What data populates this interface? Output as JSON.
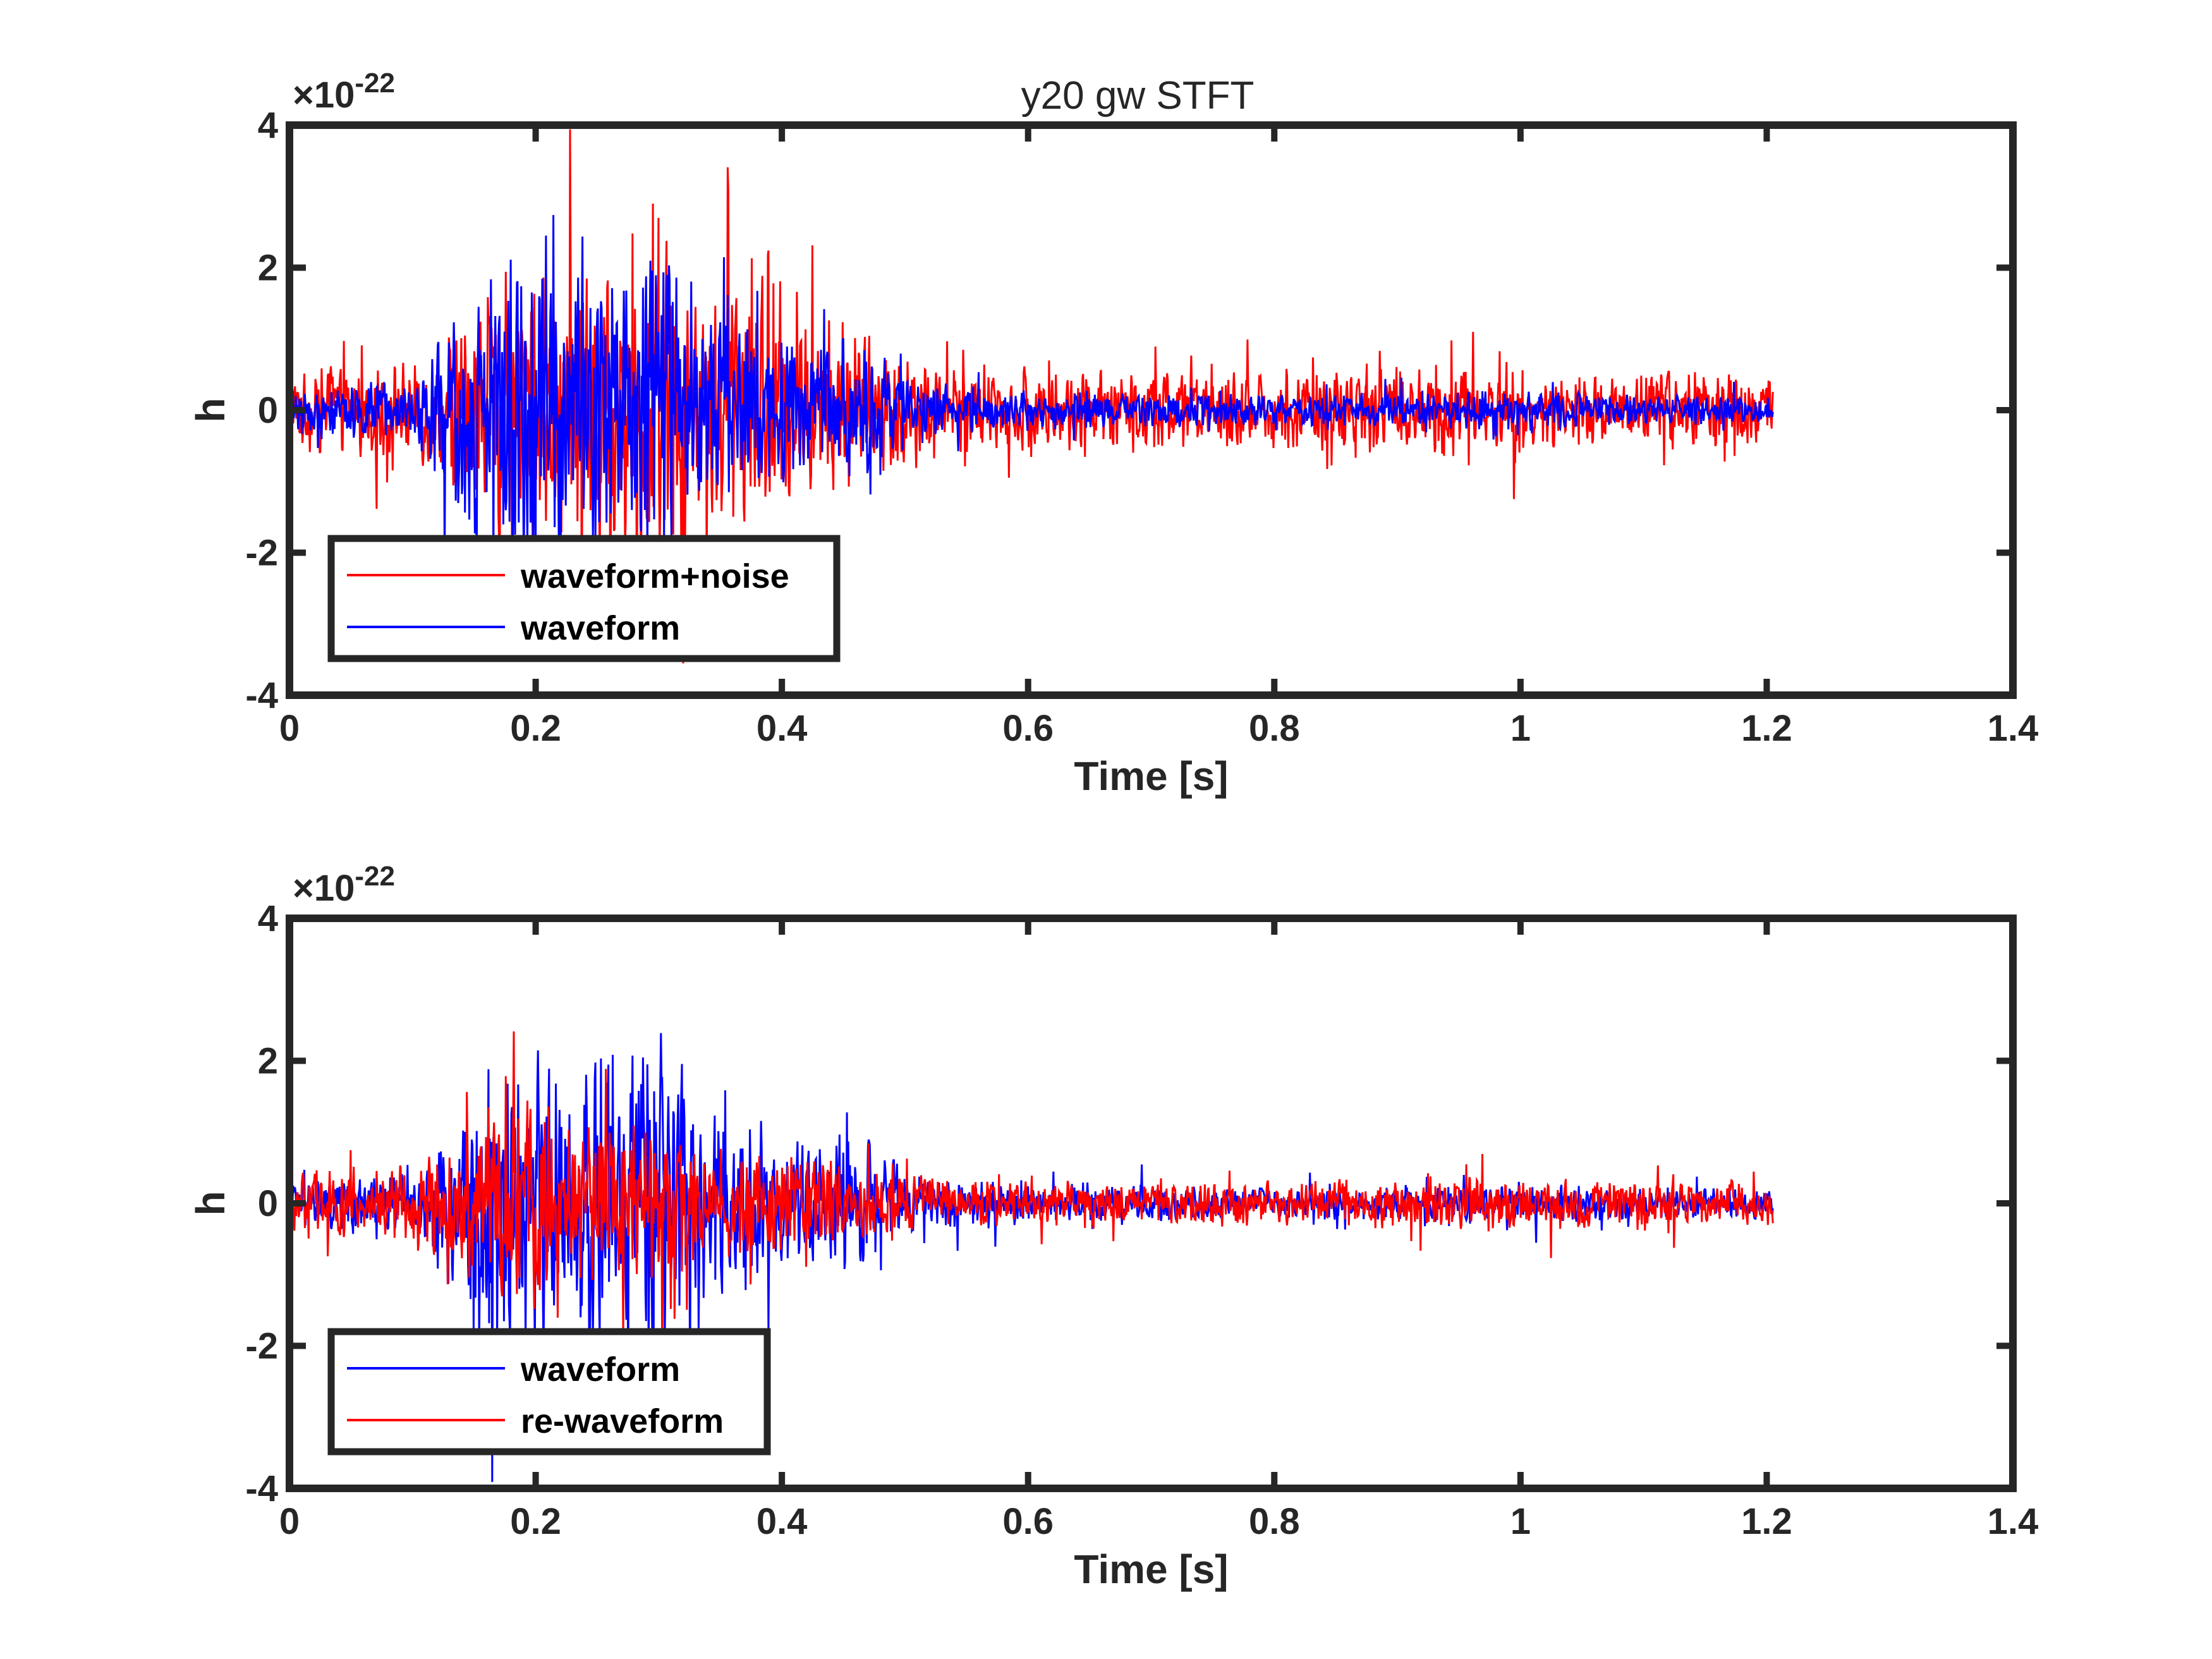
{
  "figure_title": "y20 gw STFT",
  "colors": {
    "noisy": "#ff0000",
    "waveform": "#0000ff",
    "axes": "#262626"
  },
  "chart_data": [
    {
      "type": "line",
      "title": "y20 gw STFT",
      "xlabel": "Time [s]",
      "ylabel": "h",
      "y_exponent_label": "×10",
      "y_exponent": "-22",
      "xlim": [
        0,
        1.4
      ],
      "ylim": [
        -4,
        4
      ],
      "xticks": [
        "0",
        "0.2",
        "0.4",
        "0.6",
        "0.8",
        "1",
        "1.2",
        "1.4"
      ],
      "yticks": [
        "-4",
        "-2",
        "0",
        "2",
        "4"
      ],
      "grid": false,
      "legend_position": "bottom-left",
      "series": [
        {
          "name": "waveform+noise",
          "color": "#ff0000",
          "envelope": {
            "t": [
              0,
              0.05,
              0.1,
              0.14,
              0.18,
              0.22,
              0.26,
              0.3,
              0.34,
              0.38,
              0.42,
              0.46,
              0.5,
              0.55,
              0.6,
              0.7,
              0.8,
              0.9,
              1.0,
              1.1,
              1.205
            ],
            "amp": [
              0.8,
              0.9,
              1.0,
              1.8,
              3.0,
              2.6,
              3.1,
              3.4,
              2.6,
              2.2,
              1.9,
              1.7,
              1.2,
              0.9,
              0.85,
              0.8,
              0.8,
              0.85,
              0.85,
              0.85,
              0.8
            ]
          }
        },
        {
          "name": "waveform",
          "color": "#0000ff",
          "envelope": {
            "t": [
              0,
              0.05,
              0.1,
              0.14,
              0.18,
              0.22,
              0.26,
              0.3,
              0.34,
              0.38,
              0.42,
              0.46,
              0.5,
              0.55,
              0.6,
              0.7,
              0.8,
              0.9,
              1.0,
              1.1,
              1.205
            ],
            "amp": [
              0.5,
              0.6,
              0.5,
              2.2,
              3.8,
              2.9,
              2.8,
              3.3,
              2.2,
              1.6,
              1.3,
              1.6,
              0.6,
              0.45,
              0.4,
              0.35,
              0.3,
              0.35,
              0.4,
              0.3,
              0.3
            ]
          }
        }
      ]
    },
    {
      "type": "line",
      "title": "",
      "xlabel": "Time [s]",
      "ylabel": "h",
      "y_exponent_label": "×10",
      "y_exponent": "-22",
      "xlim": [
        0,
        1.4
      ],
      "ylim": [
        -4,
        4
      ],
      "xticks": [
        "0",
        "0.2",
        "0.4",
        "0.6",
        "0.8",
        "1",
        "1.2",
        "1.4"
      ],
      "yticks": [
        "-4",
        "-2",
        "0",
        "2",
        "4"
      ],
      "grid": false,
      "legend_position": "bottom-left",
      "series": [
        {
          "name": "waveform",
          "color": "#0000ff",
          "envelope": {
            "t": [
              0,
              0.05,
              0.1,
              0.14,
              0.18,
              0.22,
              0.26,
              0.3,
              0.34,
              0.38,
              0.42,
              0.46,
              0.5,
              0.55,
              0.6,
              0.7,
              0.8,
              0.9,
              1.0,
              1.1,
              1.205
            ],
            "amp": [
              0.5,
              0.6,
              0.5,
              2.2,
              3.8,
              2.9,
              2.8,
              3.3,
              2.2,
              1.6,
              1.3,
              1.6,
              0.6,
              0.45,
              0.4,
              0.35,
              0.3,
              0.35,
              0.4,
              0.3,
              0.3
            ]
          }
        },
        {
          "name": "re-waveform",
          "color": "#ff0000",
          "envelope": {
            "t": [
              0,
              0.05,
              0.1,
              0.14,
              0.18,
              0.22,
              0.26,
              0.3,
              0.34,
              0.38,
              0.42,
              0.46,
              0.5,
              0.55,
              0.6,
              0.7,
              0.8,
              0.9,
              1.0,
              1.1,
              1.205
            ],
            "amp": [
              0.6,
              0.7,
              0.8,
              1.6,
              2.1,
              1.9,
              1.6,
              1.5,
              1.2,
              1.0,
              0.9,
              0.8,
              0.6,
              0.5,
              0.45,
              0.45,
              0.45,
              0.5,
              0.5,
              0.45,
              0.45
            ]
          }
        }
      ]
    }
  ]
}
